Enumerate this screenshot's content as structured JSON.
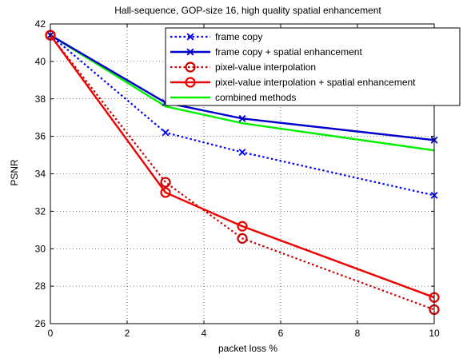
{
  "chart_data": {
    "type": "line",
    "title": "Hall-sequence, GOP-size 16, high quality spatial enhancement",
    "xlabel": "packet loss %",
    "ylabel": "PSNR",
    "xlim": [
      0,
      10
    ],
    "ylim": [
      26,
      42
    ],
    "xticks": [
      0,
      2,
      4,
      6,
      8,
      10
    ],
    "yticks": [
      26,
      28,
      30,
      32,
      34,
      36,
      38,
      40,
      42
    ],
    "grid": true,
    "legend_position": "top-right",
    "series": [
      {
        "name": "frame copy",
        "color": "#0000ff",
        "line_style": "dotted",
        "marker": "x",
        "x": [
          0,
          3,
          5,
          10
        ],
        "y": [
          41.4,
          36.2,
          35.15,
          32.85
        ]
      },
      {
        "name": "frame copy + spatial enhancement",
        "color": "#0000cc",
        "line_style": "solid",
        "marker": "x",
        "x": [
          0,
          3,
          5,
          10
        ],
        "y": [
          41.4,
          37.8,
          36.95,
          35.8
        ]
      },
      {
        "name": "pixel-value interpolation",
        "color": "#cc0000",
        "line_style": "dotted",
        "marker": "o",
        "x": [
          0,
          3,
          5,
          10
        ],
        "y": [
          41.4,
          33.55,
          30.55,
          26.75
        ]
      },
      {
        "name": "pixel-value interpolation + spatial enhancement",
        "color": "#ee0000",
        "line_style": "solid",
        "marker": "o",
        "x": [
          0,
          3,
          5,
          10
        ],
        "y": [
          41.4,
          33.0,
          31.2,
          27.4
        ]
      },
      {
        "name": "combined methods",
        "color": "#00ee00",
        "line_style": "solid",
        "marker": "none",
        "x": [
          0,
          3,
          5,
          10
        ],
        "y": [
          41.4,
          37.6,
          36.7,
          35.25
        ]
      }
    ]
  }
}
